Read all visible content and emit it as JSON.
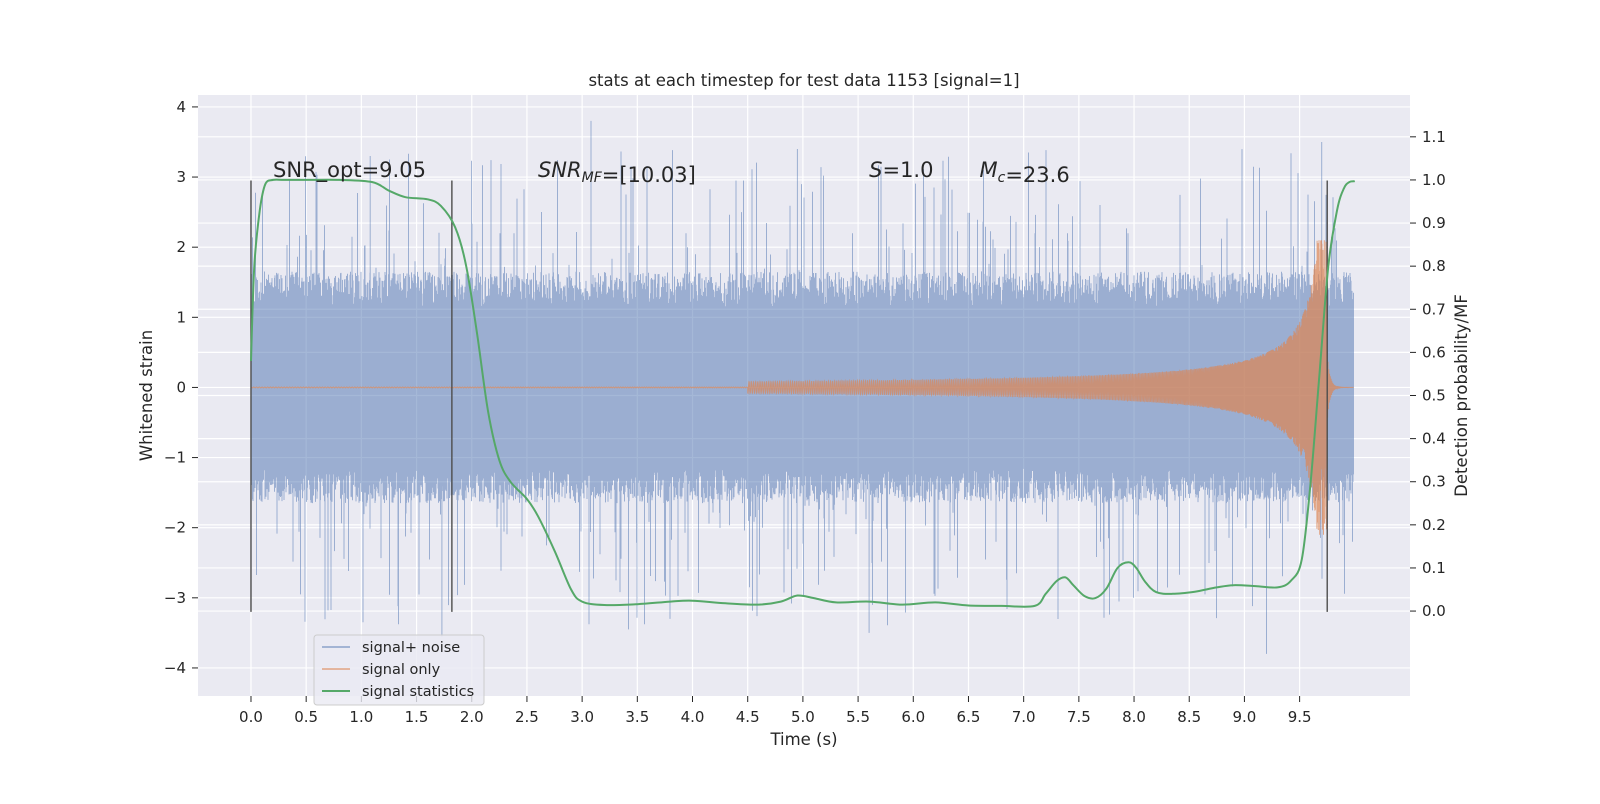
{
  "chart_data": {
    "type": "line",
    "title": "stats at each timestep for test data 1153 [signal=1]",
    "xlabel": "Time (s)",
    "ylabel_left": "Whitened strain",
    "ylabel_right": "Detection probability/MF",
    "xlim": [
      -0.48,
      10.5
    ],
    "ylim_left": [
      -4.4,
      4.17
    ],
    "ylim_right": [
      -0.197,
      1.197
    ],
    "x_ticks": [
      0.0,
      0.5,
      1.0,
      1.5,
      2.0,
      2.5,
      3.0,
      3.5,
      4.0,
      4.5,
      5.0,
      5.5,
      6.0,
      6.5,
      7.0,
      7.5,
      8.0,
      8.5,
      9.0,
      9.5
    ],
    "x_tick_labels": [
      "0.0",
      "0.5",
      "1.0",
      "1.5",
      "2.0",
      "2.5",
      "3.0",
      "3.5",
      "4.0",
      "4.5",
      "5.0",
      "5.5",
      "6.0",
      "6.5",
      "7.0",
      "7.5",
      "8.0",
      "8.5",
      "9.0",
      "9.5"
    ],
    "y_left_ticks": [
      -4,
      -3,
      -2,
      -1,
      0,
      1,
      2,
      3,
      4
    ],
    "y_left_tick_labels": [
      "−4",
      "−3",
      "−2",
      "−1",
      "0",
      "1",
      "2",
      "3",
      "4"
    ],
    "y_right_ticks": [
      0.0,
      0.1,
      0.2,
      0.3,
      0.4,
      0.5,
      0.6,
      0.7,
      0.8,
      0.9,
      1.0,
      1.1
    ],
    "y_right_tick_labels": [
      "0.0",
      "0.1",
      "0.2",
      "0.3",
      "0.4",
      "0.5",
      "0.6",
      "0.7",
      "0.8",
      "0.9",
      "1.0",
      "1.1"
    ],
    "grid": true,
    "legend_position": "lower-left",
    "series": [
      {
        "name": "signal+ noise",
        "color": "#4c72b0",
        "axis": "left",
        "x_range": [
          0.0,
          9.99
        ],
        "typical_range": [
          -1.9,
          1.9
        ],
        "peak_max": 3.8,
        "peak_min": -3.8
      },
      {
        "name": "signal only",
        "color": "#dd8452",
        "axis": "left",
        "description_points": [
          [
            0.0,
            0.0
          ],
          [
            5.5,
            0.02
          ],
          [
            7.0,
            0.05
          ],
          [
            8.0,
            0.08
          ],
          [
            9.0,
            0.2
          ],
          [
            9.5,
            0.6
          ],
          [
            9.7,
            2.0
          ],
          [
            9.75,
            0.0
          ]
        ]
      },
      {
        "name": "signal statistics",
        "color": "#55a868",
        "axis": "right",
        "x": [
          0.0,
          0.03,
          0.08,
          0.13,
          0.2,
          0.3,
          0.5,
          0.8,
          1.1,
          1.25,
          1.4,
          1.6,
          1.72,
          1.85,
          1.95,
          2.05,
          2.15,
          2.25,
          2.35,
          2.5,
          2.6,
          2.75,
          2.9,
          3.0,
          3.2,
          3.5,
          3.8,
          4.0,
          4.3,
          4.6,
          4.8,
          4.95,
          5.1,
          5.3,
          5.6,
          5.9,
          6.2,
          6.5,
          6.8,
          7.1,
          7.2,
          7.3,
          7.38,
          7.45,
          7.55,
          7.65,
          7.75,
          7.85,
          7.95,
          8.02,
          8.1,
          8.2,
          8.35,
          8.55,
          8.75,
          8.9,
          9.1,
          9.3,
          9.42,
          9.52,
          9.6,
          9.68,
          9.76,
          9.84,
          9.9,
          9.95,
          10.0
        ],
        "y": [
          0.58,
          0.8,
          0.93,
          0.99,
          1.0,
          1.0,
          1.0,
          1.0,
          0.995,
          0.975,
          0.96,
          0.955,
          0.94,
          0.89,
          0.8,
          0.64,
          0.46,
          0.35,
          0.3,
          0.26,
          0.22,
          0.14,
          0.05,
          0.022,
          0.014,
          0.016,
          0.022,
          0.024,
          0.018,
          0.015,
          0.022,
          0.036,
          0.03,
          0.02,
          0.022,
          0.015,
          0.02,
          0.013,
          0.012,
          0.012,
          0.04,
          0.07,
          0.078,
          0.06,
          0.035,
          0.03,
          0.052,
          0.1,
          0.113,
          0.1,
          0.068,
          0.044,
          0.04,
          0.045,
          0.055,
          0.06,
          0.058,
          0.055,
          0.07,
          0.12,
          0.3,
          0.55,
          0.8,
          0.93,
          0.98,
          0.995,
          0.997
        ]
      }
    ],
    "vertical_lines_x": [
      0.0,
      1.82,
      9.75
    ],
    "annotations": [
      {
        "parts": [
          {
            "t": "SNR_opt=9.05",
            "i": false
          }
        ],
        "x": 0.2,
        "y": 3.0
      },
      {
        "parts": [
          {
            "t": "SNR",
            "i": true
          },
          {
            "t": "MF",
            "i": true,
            "sub": true
          },
          {
            "t": "=[10.03]",
            "i": false
          }
        ],
        "x": 2.6,
        "y": 3.0
      },
      {
        "parts": [
          {
            "t": "S",
            "i": true
          },
          {
            "t": "=1.0",
            "i": false
          }
        ],
        "x": 5.6,
        "y": 3.0
      },
      {
        "parts": [
          {
            "t": "M",
            "i": true
          },
          {
            "t": "c",
            "i": true,
            "sub": true
          },
          {
            "t": "=23.6",
            "i": false
          }
        ],
        "x": 6.6,
        "y": 3.0
      }
    ]
  },
  "legend": {
    "items": [
      {
        "label": "signal+ noise",
        "color": "#4c72b0"
      },
      {
        "label": "signal only",
        "color": "#dd8452"
      },
      {
        "label": "signal statistics",
        "color": "#55a868"
      }
    ]
  },
  "colors": {
    "axes_background": "#eaeaf2",
    "grid": "#ffffff",
    "text": "#262626",
    "vline": "#4d4d4d"
  }
}
